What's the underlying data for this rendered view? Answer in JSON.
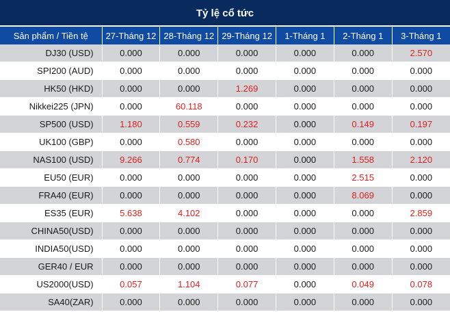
{
  "title": "Tỷ lệ cổ tức",
  "headers": [
    "Sản phẩm / Tiền tệ",
    "27-Tháng 12",
    "28-Tháng 12",
    "29-Tháng 12",
    "1-Tháng 1",
    "2-Tháng 1",
    "3-Tháng 1"
  ],
  "colors": {
    "header_bg": "#082a5c",
    "subheader_bg": "#0f4aa3",
    "stripe": "#d2d4d8",
    "positive_value": "#e0201c"
  },
  "rows": [
    {
      "symbol": "DJ30 (USD)",
      "values": [
        "0.000",
        "0.000",
        "0.000",
        "0.000",
        "0.000",
        "2.570"
      ]
    },
    {
      "symbol": "SPI200 (AUD)",
      "values": [
        "0.000",
        "0.000",
        "0.000",
        "0.000",
        "0.000",
        "0.000"
      ]
    },
    {
      "symbol": "HK50 (HKD)",
      "values": [
        "0.000",
        "0.000",
        "1.269",
        "0.000",
        "0.000",
        "0.000"
      ]
    },
    {
      "symbol": "Nikkei225 (JPN)",
      "values": [
        "0.000",
        "60.118",
        "0.000",
        "0.000",
        "0.000",
        "0.000"
      ]
    },
    {
      "symbol": "SP500 (USD)",
      "values": [
        "1.180",
        "0.559",
        "0.232",
        "0.000",
        "0.149",
        "0.197"
      ]
    },
    {
      "symbol": "UK100 (GBP)",
      "values": [
        "0.000",
        "0.580",
        "0.000",
        "0.000",
        "0.000",
        "0.000"
      ]
    },
    {
      "symbol": "NAS100 (USD)",
      "values": [
        "9.266",
        "0.774",
        "0.170",
        "0.000",
        "1.558",
        "2.120"
      ]
    },
    {
      "symbol": "EU50 (EUR)",
      "values": [
        "0.000",
        "0.000",
        "0.000",
        "0.000",
        "2.515",
        "0.000"
      ]
    },
    {
      "symbol": "FRA40 (EUR)",
      "values": [
        "0.000",
        "0.000",
        "0.000",
        "0.000",
        "8.069",
        "0.000"
      ]
    },
    {
      "symbol": "ES35 (EUR)",
      "values": [
        "5.638",
        "4.102",
        "0.000",
        "0.000",
        "0.000",
        "2.859"
      ]
    },
    {
      "symbol": "CHINA50(USD)",
      "values": [
        "0.000",
        "0.000",
        "0.000",
        "0.000",
        "0.000",
        "0.000"
      ]
    },
    {
      "symbol": "INDIA50(USD)",
      "values": [
        "0.000",
        "0.000",
        "0.000",
        "0.000",
        "0.000",
        "0.000"
      ]
    },
    {
      "symbol": "GER40 / EUR",
      "values": [
        "0.000",
        "0.000",
        "0.000",
        "0.000",
        "0.000",
        "0.000"
      ]
    },
    {
      "symbol": "US2000(USD)",
      "values": [
        "0.057",
        "1.104",
        "0.077",
        "0.000",
        "0.049",
        "0.078"
      ]
    },
    {
      "symbol": "SA40(ZAR)",
      "values": [
        "0.000",
        "0.000",
        "0.000",
        "0.000",
        "0.000",
        "0.000"
      ]
    }
  ]
}
